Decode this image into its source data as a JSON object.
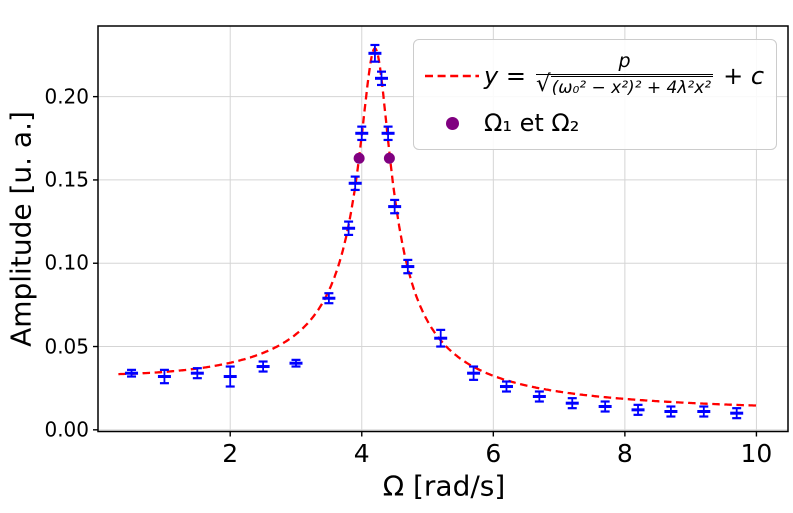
{
  "figure": {
    "background": "#ffffff",
    "xtick_labels": [
      "2",
      "4",
      "6",
      "8",
      "10"
    ],
    "ytick_labels": [
      "0.00",
      "0.05",
      "0.10",
      "0.15",
      "0.20"
    ],
    "grid_color": "#d5d5d5",
    "spine_color": "#000000"
  },
  "legend": {
    "fit": {
      "lhs": "y =",
      "numerator": "p",
      "sqrt": "√",
      "denominator": "(ω₀² − x²)² + 4λ²x²",
      "suffix": "+ c",
      "line_color": "#ff0000"
    },
    "points": {
      "label": "Ω₁ et Ω₂",
      "marker_color": "#800080"
    }
  },
  "chart_data": {
    "type": "scatter",
    "title": "",
    "xlabel": "Ω [rad/s]",
    "ylabel": "Amplitude [u. a.]",
    "xlim": [
      -0.01,
      10.48
    ],
    "ylim": [
      -0.001,
      0.2424
    ],
    "xticks": [
      2,
      4,
      6,
      8,
      10
    ],
    "yticks": [
      0,
      0.05,
      0.1,
      0.15,
      0.2
    ],
    "grid": true,
    "legend_position": "upper right",
    "series": [
      {
        "name": "measurements",
        "style": "errorbar",
        "color": "#0000ff",
        "x": [
          0.5,
          1.0,
          1.5,
          2.0,
          2.5,
          3.0,
          3.5,
          3.8,
          3.9,
          4.0,
          4.2,
          4.3,
          4.4,
          4.5,
          4.7,
          5.2,
          5.7,
          6.2,
          6.7,
          7.2,
          7.7,
          8.2,
          8.7,
          9.2,
          9.7
        ],
        "y": [
          0.034,
          0.032,
          0.034,
          0.032,
          0.038,
          0.04,
          0.079,
          0.121,
          0.148,
          0.178,
          0.226,
          0.211,
          0.178,
          0.134,
          0.098,
          0.055,
          0.034,
          0.026,
          0.02,
          0.016,
          0.014,
          0.012,
          0.011,
          0.011,
          0.01
        ],
        "yerr": [
          0.002,
          0.004,
          0.003,
          0.006,
          0.003,
          0.002,
          0.003,
          0.004,
          0.004,
          0.004,
          0.005,
          0.004,
          0.004,
          0.004,
          0.004,
          0.005,
          0.004,
          0.003,
          0.003,
          0.003,
          0.003,
          0.003,
          0.003,
          0.003,
          0.003
        ]
      },
      {
        "name": "fit-curve",
        "style": "dashed-line",
        "color": "#ff0000",
        "label": "y = p/√((ω₀² − x²)² + 4λ²x²) + c",
        "fit_params": {
          "p": 0.425,
          "omega0": 4.213,
          "lambda": 0.23,
          "c": 0.0094
        },
        "x_range": [
          0.3,
          10.0
        ]
      },
      {
        "name": "half-power-points",
        "style": "scatter",
        "color": "#800080",
        "label": "Ω₁ et Ω₂",
        "x": [
          3.96,
          4.42
        ],
        "y": [
          0.163,
          0.163
        ]
      }
    ]
  }
}
